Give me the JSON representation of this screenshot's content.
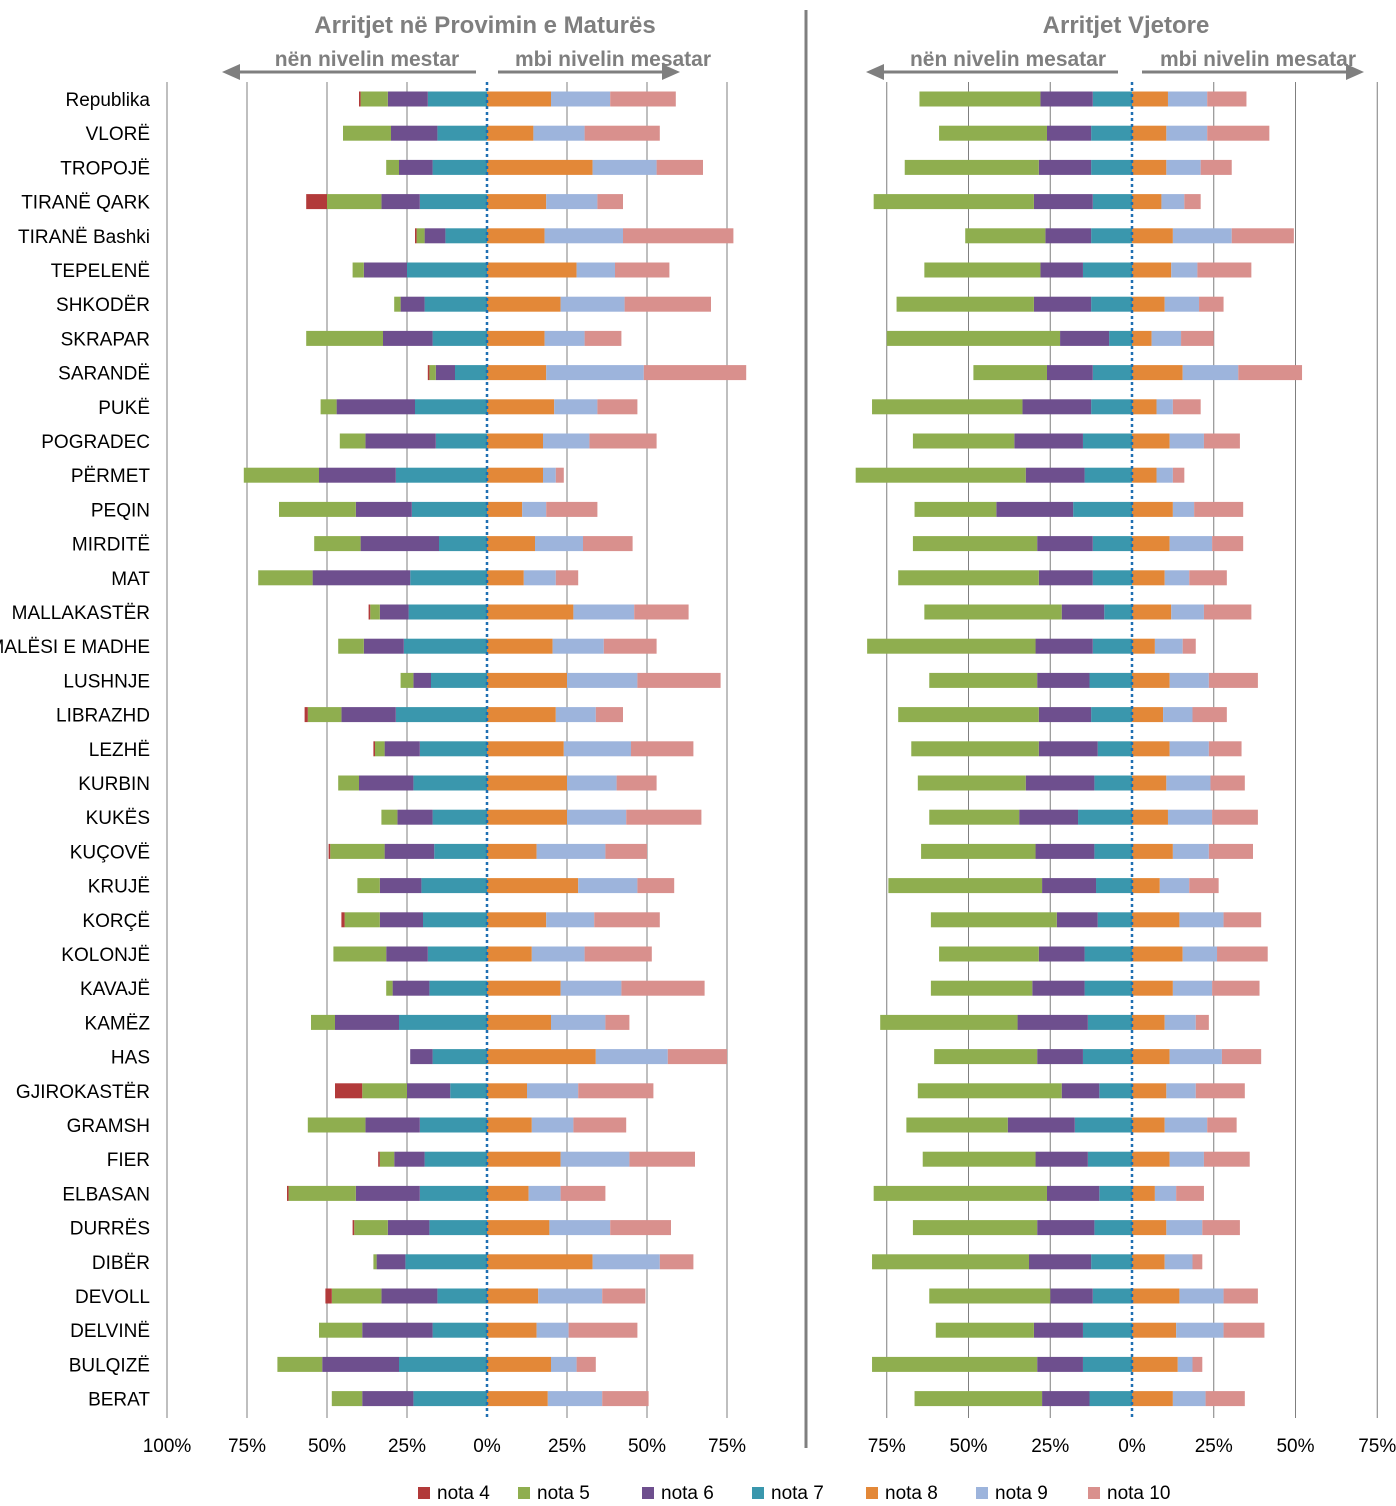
{
  "chart_data": [
    {
      "type": "bar",
      "stacked": true,
      "diverging": true,
      "title": "Arritjet në Provimin e Maturës",
      "arrow_left_label": "nën nivelin mestar",
      "arrow_right_label": "mbi nivelin mesatar",
      "xlim": [
        -100,
        75
      ],
      "xticks": [
        "100%",
        "75%",
        "50%",
        "25%",
        "0%",
        "25%",
        "50%",
        "75%"
      ],
      "negative_order": [
        "nota 7",
        "nota 6",
        "nota 5",
        "nota 4"
      ],
      "positive_order": [
        "nota 8",
        "nota 9",
        "nota 10"
      ],
      "rows": [
        {
          "name": "Republika",
          "nota4": 0.5,
          "nota5": 8.5,
          "nota6": 12.5,
          "nota7": 18.5,
          "nota8": 20,
          "nota9": 18.5,
          "nota10": 20.5
        },
        {
          "name": "VLORË",
          "nota4": 0,
          "nota5": 15,
          "nota6": 14.5,
          "nota7": 15.5,
          "nota8": 14.5,
          "nota9": 16,
          "nota10": 23.5
        },
        {
          "name": "TROPOJË",
          "nota4": 0,
          "nota5": 4,
          "nota6": 10.5,
          "nota7": 17,
          "nota8": 33,
          "nota9": 20,
          "nota10": 14.5
        },
        {
          "name": "TIRANË QARK",
          "nota4": 6.5,
          "nota5": 17,
          "nota6": 12,
          "nota7": 21,
          "nota8": 18.5,
          "nota9": 16,
          "nota10": 8
        },
        {
          "name": "TIRANË Bashki",
          "nota4": 0.5,
          "nota5": 2.5,
          "nota6": 6.5,
          "nota7": 13,
          "nota8": 18,
          "nota9": 24.5,
          "nota10": 34.5
        },
        {
          "name": "TEPELENË",
          "nota4": 0,
          "nota5": 3.5,
          "nota6": 13.5,
          "nota7": 25,
          "nota8": 28,
          "nota9": 12,
          "nota10": 17
        },
        {
          "name": "SHKODËR",
          "nota4": 0,
          "nota5": 2,
          "nota6": 7.5,
          "nota7": 19.5,
          "nota8": 23,
          "nota9": 20,
          "nota10": 27
        },
        {
          "name": "SKRAPAR",
          "nota4": 0,
          "nota5": 24,
          "nota6": 15.5,
          "nota7": 17,
          "nota8": 18,
          "nota9": 12.5,
          "nota10": 11.5
        },
        {
          "name": "SARANDË",
          "nota4": 0.5,
          "nota5": 2,
          "nota6": 6,
          "nota7": 10,
          "nota8": 18.5,
          "nota9": 30.5,
          "nota10": 32
        },
        {
          "name": "PUKË",
          "nota4": 0,
          "nota5": 5,
          "nota6": 24.5,
          "nota7": 22.5,
          "nota8": 21,
          "nota9": 13.5,
          "nota10": 12.5
        },
        {
          "name": "POGRADEC",
          "nota4": 0,
          "nota5": 8,
          "nota6": 22,
          "nota7": 16,
          "nota8": 17.5,
          "nota9": 14.5,
          "nota10": 21
        },
        {
          "name": "PËRMET",
          "nota4": 0,
          "nota5": 23.5,
          "nota6": 24,
          "nota7": 28.5,
          "nota8": 17.5,
          "nota9": 4,
          "nota10": 2.5
        },
        {
          "name": "PEQIN",
          "nota4": 0,
          "nota5": 24,
          "nota6": 17.5,
          "nota7": 23.5,
          "nota8": 11,
          "nota9": 7.5,
          "nota10": 16
        },
        {
          "name": "MIRDITË",
          "nota4": 0,
          "nota5": 14.5,
          "nota6": 24.5,
          "nota7": 15,
          "nota8": 15,
          "nota9": 15,
          "nota10": 15.5
        },
        {
          "name": "MAT",
          "nota4": 0,
          "nota5": 17,
          "nota6": 30.5,
          "nota7": 24,
          "nota8": 11.5,
          "nota9": 10,
          "nota10": 7
        },
        {
          "name": "MALLAKASTËR",
          "nota4": 0.5,
          "nota5": 3,
          "nota6": 9,
          "nota7": 24.5,
          "nota8": 27,
          "nota9": 19,
          "nota10": 17
        },
        {
          "name": "MALËSI E MADHE",
          "nota4": 0,
          "nota5": 8,
          "nota6": 12.5,
          "nota7": 26,
          "nota8": 20.5,
          "nota9": 16,
          "nota10": 16.5
        },
        {
          "name": "LUSHNJE",
          "nota4": 0,
          "nota5": 4,
          "nota6": 5.5,
          "nota7": 17.5,
          "nota8": 25,
          "nota9": 22,
          "nota10": 26
        },
        {
          "name": "LIBRAZHD",
          "nota4": 1,
          "nota5": 10.5,
          "nota6": 17,
          "nota7": 28.5,
          "nota8": 21.5,
          "nota9": 12.5,
          "nota10": 8.5
        },
        {
          "name": "LEZHË",
          "nota4": 0.5,
          "nota5": 3,
          "nota6": 11,
          "nota7": 21,
          "nota8": 24,
          "nota9": 21,
          "nota10": 19.5
        },
        {
          "name": "KURBIN",
          "nota4": 0,
          "nota5": 6.5,
          "nota6": 17,
          "nota7": 23,
          "nota8": 25,
          "nota9": 15.5,
          "nota10": 12.5
        },
        {
          "name": "KUKËS",
          "nota4": 0,
          "nota5": 5,
          "nota6": 11,
          "nota7": 17,
          "nota8": 25,
          "nota9": 18.5,
          "nota10": 23.5
        },
        {
          "name": "KUÇOVË",
          "nota4": 0.5,
          "nota5": 17,
          "nota6": 15.5,
          "nota7": 16.5,
          "nota8": 15.5,
          "nota9": 21.5,
          "nota10": 13
        },
        {
          "name": "KRUJË",
          "nota4": 0,
          "nota5": 7,
          "nota6": 13,
          "nota7": 20.5,
          "nota8": 28.5,
          "nota9": 18.5,
          "nota10": 11.5
        },
        {
          "name": "KORÇË",
          "nota4": 1,
          "nota5": 11,
          "nota6": 13.5,
          "nota7": 20,
          "nota8": 18.5,
          "nota9": 15,
          "nota10": 20.5
        },
        {
          "name": "KOLONJË",
          "nota4": 0,
          "nota5": 16.5,
          "nota6": 13,
          "nota7": 18.5,
          "nota8": 14,
          "nota9": 16.5,
          "nota10": 21
        },
        {
          "name": "KAVAJË",
          "nota4": 0,
          "nota5": 2,
          "nota6": 11.5,
          "nota7": 18,
          "nota8": 23,
          "nota9": 19,
          "nota10": 26
        },
        {
          "name": "KAMËZ",
          "nota4": 0,
          "nota5": 7.5,
          "nota6": 20,
          "nota7": 27.5,
          "nota8": 20,
          "nota9": 17,
          "nota10": 7.5
        },
        {
          "name": "HAS",
          "nota4": 0,
          "nota5": 0,
          "nota6": 7,
          "nota7": 17,
          "nota8": 34,
          "nota9": 22.5,
          "nota10": 18.5
        },
        {
          "name": "GJIROKASTËR",
          "nota4": 8.5,
          "nota5": 14,
          "nota6": 13.5,
          "nota7": 11.5,
          "nota8": 12.5,
          "nota9": 16,
          "nota10": 23.5
        },
        {
          "name": "GRAMSH",
          "nota4": 0,
          "nota5": 18,
          "nota6": 17,
          "nota7": 21,
          "nota8": 14,
          "nota9": 13,
          "nota10": 16.5
        },
        {
          "name": "FIER",
          "nota4": 0.5,
          "nota5": 4.5,
          "nota6": 9.5,
          "nota7": 19.5,
          "nota8": 23,
          "nota9": 21.5,
          "nota10": 20.5
        },
        {
          "name": "ELBASAN",
          "nota4": 0.5,
          "nota5": 21,
          "nota6": 20,
          "nota7": 21,
          "nota8": 13,
          "nota9": 10,
          "nota10": 14
        },
        {
          "name": "DURRËS",
          "nota4": 0.5,
          "nota5": 10.5,
          "nota6": 13,
          "nota7": 18,
          "nota8": 19.5,
          "nota9": 19,
          "nota10": 19
        },
        {
          "name": "DIBËR",
          "nota4": 0,
          "nota5": 1,
          "nota6": 9,
          "nota7": 25.5,
          "nota8": 33,
          "nota9": 21,
          "nota10": 10.5
        },
        {
          "name": "DEVOLL",
          "nota4": 2,
          "nota5": 15.5,
          "nota6": 17.5,
          "nota7": 15.5,
          "nota8": 16,
          "nota9": 20,
          "nota10": 13.5
        },
        {
          "name": "DELVINË",
          "nota4": 0,
          "nota5": 13.5,
          "nota6": 22,
          "nota7": 17,
          "nota8": 15.5,
          "nota9": 10,
          "nota10": 21.5
        },
        {
          "name": "BULQIZË",
          "nota4": 0,
          "nota5": 14,
          "nota6": 24,
          "nota7": 27.5,
          "nota8": 20,
          "nota9": 8,
          "nota10": 6
        },
        {
          "name": "BERAT",
          "nota4": 0,
          "nota5": 9.5,
          "nota6": 16,
          "nota7": 23,
          "nota8": 19,
          "nota9": 17,
          "nota10": 14.5
        }
      ]
    },
    {
      "type": "bar",
      "stacked": true,
      "diverging": true,
      "title": "Arritjet Vjetore",
      "arrow_left_label": "nën nivelin mesatar",
      "arrow_right_label": "mbi nivelin mesatar",
      "xlim": [
        -75,
        75
      ],
      "xticks": [
        "75%",
        "50%",
        "25%",
        "0%",
        "25%",
        "50%",
        "75%"
      ],
      "negative_order": [
        "nota 7",
        "nota 6",
        "nota 5",
        "nota 4"
      ],
      "positive_order": [
        "nota 8",
        "nota 9",
        "nota 10"
      ],
      "rows": [
        {
          "name": "Republika",
          "nota4": 0,
          "nota5": 37,
          "nota6": 16,
          "nota7": 12,
          "nota8": 11,
          "nota9": 12,
          "nota10": 12
        },
        {
          "name": "VLORË",
          "nota4": 0,
          "nota5": 33,
          "nota6": 13.5,
          "nota7": 12.5,
          "nota8": 10.5,
          "nota9": 12.5,
          "nota10": 19
        },
        {
          "name": "TROPOJË",
          "nota4": 0,
          "nota5": 41,
          "nota6": 16,
          "nota7": 12.5,
          "nota8": 10.5,
          "nota9": 10.5,
          "nota10": 9.5
        },
        {
          "name": "TIRANË QARK",
          "nota4": 0,
          "nota5": 49,
          "nota6": 18,
          "nota7": 12,
          "nota8": 9,
          "nota9": 7,
          "nota10": 5
        },
        {
          "name": "TIRANË Bashki",
          "nota4": 0,
          "nota5": 24.5,
          "nota6": 14,
          "nota7": 12.5,
          "nota8": 12.5,
          "nota9": 18,
          "nota10": 19
        },
        {
          "name": "TEPELENË",
          "nota4": 0,
          "nota5": 35.5,
          "nota6": 13,
          "nota7": 15,
          "nota8": 12,
          "nota9": 8,
          "nota10": 16.5
        },
        {
          "name": "SHKODËR",
          "nota4": 0,
          "nota5": 42,
          "nota6": 17.5,
          "nota7": 12.5,
          "nota8": 10,
          "nota9": 10.5,
          "nota10": 7.5
        },
        {
          "name": "SKRAPAR",
          "nota4": 0,
          "nota5": 53,
          "nota6": 15,
          "nota7": 7,
          "nota8": 6,
          "nota9": 9,
          "nota10": 10
        },
        {
          "name": "SARANDË",
          "nota4": 0,
          "nota5": 22.5,
          "nota6": 14,
          "nota7": 12,
          "nota8": 15.5,
          "nota9": 17,
          "nota10": 19.5
        },
        {
          "name": "PUKË",
          "nota4": 0,
          "nota5": 46,
          "nota6": 21,
          "nota7": 12.5,
          "nota8": 7.5,
          "nota9": 5,
          "nota10": 8.5
        },
        {
          "name": "POGRADEC",
          "nota4": 0,
          "nota5": 31,
          "nota6": 21,
          "nota7": 15,
          "nota8": 11.5,
          "nota9": 10.5,
          "nota10": 11
        },
        {
          "name": "PËRMET",
          "nota4": 0,
          "nota5": 52,
          "nota6": 18,
          "nota7": 14.5,
          "nota8": 7.5,
          "nota9": 5,
          "nota10": 3.5
        },
        {
          "name": "PEQIN",
          "nota4": 0,
          "nota5": 25,
          "nota6": 23.5,
          "nota7": 18,
          "nota8": 12.5,
          "nota9": 6.5,
          "nota10": 15
        },
        {
          "name": "MIRDITË",
          "nota4": 0,
          "nota5": 38,
          "nota6": 17,
          "nota7": 12,
          "nota8": 11.5,
          "nota9": 13,
          "nota10": 9.5
        },
        {
          "name": "MAT",
          "nota4": 0,
          "nota5": 43,
          "nota6": 16.5,
          "nota7": 12,
          "nota8": 10,
          "nota9": 7.5,
          "nota10": 11.5
        },
        {
          "name": "MALLAKASTËR",
          "nota4": 0,
          "nota5": 42,
          "nota6": 13,
          "nota7": 8.5,
          "nota8": 12,
          "nota9": 10,
          "nota10": 14.5
        },
        {
          "name": "MALËSI E MADHE",
          "nota4": 0,
          "nota5": 51.5,
          "nota6": 17.5,
          "nota7": 12,
          "nota8": 7,
          "nota9": 8.5,
          "nota10": 4
        },
        {
          "name": "LUSHNJE",
          "nota4": 0,
          "nota5": 33,
          "nota6": 16,
          "nota7": 13,
          "nota8": 11.5,
          "nota9": 12,
          "nota10": 15
        },
        {
          "name": "LIBRAZHD",
          "nota4": 0,
          "nota5": 43,
          "nota6": 16,
          "nota7": 12.5,
          "nota8": 9.5,
          "nota9": 9,
          "nota10": 10.5
        },
        {
          "name": "LEZHË",
          "nota4": 0,
          "nota5": 39,
          "nota6": 18,
          "nota7": 10.5,
          "nota8": 11.5,
          "nota9": 12,
          "nota10": 10
        },
        {
          "name": "KURBIN",
          "nota4": 0,
          "nota5": 33,
          "nota6": 21,
          "nota7": 11.5,
          "nota8": 10.5,
          "nota9": 13.5,
          "nota10": 10.5
        },
        {
          "name": "KUKËS",
          "nota4": 0,
          "nota5": 27.5,
          "nota6": 18,
          "nota7": 16.5,
          "nota8": 11,
          "nota9": 13.5,
          "nota10": 14
        },
        {
          "name": "KUÇOVË",
          "nota4": 0,
          "nota5": 35,
          "nota6": 18,
          "nota7": 11.5,
          "nota8": 12.5,
          "nota9": 11,
          "nota10": 13.5
        },
        {
          "name": "KRUJË",
          "nota4": 0,
          "nota5": 47,
          "nota6": 16.5,
          "nota7": 11,
          "nota8": 8.5,
          "nota9": 9,
          "nota10": 9
        },
        {
          "name": "KORÇË",
          "nota4": 0,
          "nota5": 38.5,
          "nota6": 12.5,
          "nota7": 10.5,
          "nota8": 14.5,
          "nota9": 13.5,
          "nota10": 11.5
        },
        {
          "name": "KOLONJË",
          "nota4": 0,
          "nota5": 30.5,
          "nota6": 14,
          "nota7": 14.5,
          "nota8": 15.5,
          "nota9": 10.5,
          "nota10": 15.5
        },
        {
          "name": "KAVAJË",
          "nota4": 0,
          "nota5": 31,
          "nota6": 16,
          "nota7": 14.5,
          "nota8": 12.5,
          "nota9": 12,
          "nota10": 14.5
        },
        {
          "name": "KAMËZ",
          "nota4": 0,
          "nota5": 42,
          "nota6": 21.5,
          "nota7": 13.5,
          "nota8": 10,
          "nota9": 9.5,
          "nota10": 4
        },
        {
          "name": "HAS",
          "nota4": 0,
          "nota5": 31.5,
          "nota6": 14,
          "nota7": 15,
          "nota8": 11.5,
          "nota9": 16,
          "nota10": 12
        },
        {
          "name": "GJIROKASTËR",
          "nota4": 0,
          "nota5": 44,
          "nota6": 11.5,
          "nota7": 10,
          "nota8": 10.5,
          "nota9": 9,
          "nota10": 15
        },
        {
          "name": "GRAMSH",
          "nota4": 0,
          "nota5": 31,
          "nota6": 20.5,
          "nota7": 17.5,
          "nota8": 10,
          "nota9": 13,
          "nota10": 9
        },
        {
          "name": "FIER",
          "nota4": 0,
          "nota5": 34.5,
          "nota6": 16,
          "nota7": 13.5,
          "nota8": 11.5,
          "nota9": 10.5,
          "nota10": 14
        },
        {
          "name": "ELBASAN",
          "nota4": 0,
          "nota5": 53,
          "nota6": 16,
          "nota7": 10,
          "nota8": 7,
          "nota9": 6.5,
          "nota10": 8.5
        },
        {
          "name": "DURRËS",
          "nota4": 0,
          "nota5": 38,
          "nota6": 17.5,
          "nota7": 11.5,
          "nota8": 10.5,
          "nota9": 11,
          "nota10": 11.5
        },
        {
          "name": "DIBËR",
          "nota4": 0,
          "nota5": 48,
          "nota6": 19,
          "nota7": 12.5,
          "nota8": 10,
          "nota9": 8.5,
          "nota10": 3
        },
        {
          "name": "DEVOLL",
          "nota4": 0,
          "nota5": 37,
          "nota6": 13,
          "nota7": 12,
          "nota8": 14.5,
          "nota9": 13.5,
          "nota10": 10.5
        },
        {
          "name": "DELVINË",
          "nota4": 0,
          "nota5": 30,
          "nota6": 15,
          "nota7": 15,
          "nota8": 13.5,
          "nota9": 14.5,
          "nota10": 12.5
        },
        {
          "name": "BULQIZË",
          "nota4": 0,
          "nota5": 50.5,
          "nota6": 14,
          "nota7": 15,
          "nota8": 14,
          "nota9": 4.5,
          "nota10": 3
        },
        {
          "name": "BERAT",
          "nota4": 0,
          "nota5": 39,
          "nota6": 14.5,
          "nota7": 13,
          "nota8": 12.5,
          "nota9": 10,
          "nota10": 12
        }
      ]
    }
  ],
  "legend": [
    {
      "key": "nota4",
      "label": "nota 4",
      "color": "#b23a3a"
    },
    {
      "key": "nota5",
      "label": "nota 5",
      "color": "#8fae4f"
    },
    {
      "key": "nota6",
      "label": "nota 6",
      "color": "#6e4f8e"
    },
    {
      "key": "nota7",
      "label": "nota 7",
      "color": "#3a97ad"
    },
    {
      "key": "nota8",
      "label": "nota 8",
      "color": "#e38838"
    },
    {
      "key": "nota9",
      "label": "nota 9",
      "color": "#9db4dc"
    },
    {
      "key": "nota10",
      "label": "nota 10",
      "color": "#d9908d"
    }
  ],
  "gridline_color": "#7f7f7f",
  "divider_color": "#7f7f7f",
  "zero_line_color": "#1f6fb2",
  "title_color": "#7f7f7f"
}
